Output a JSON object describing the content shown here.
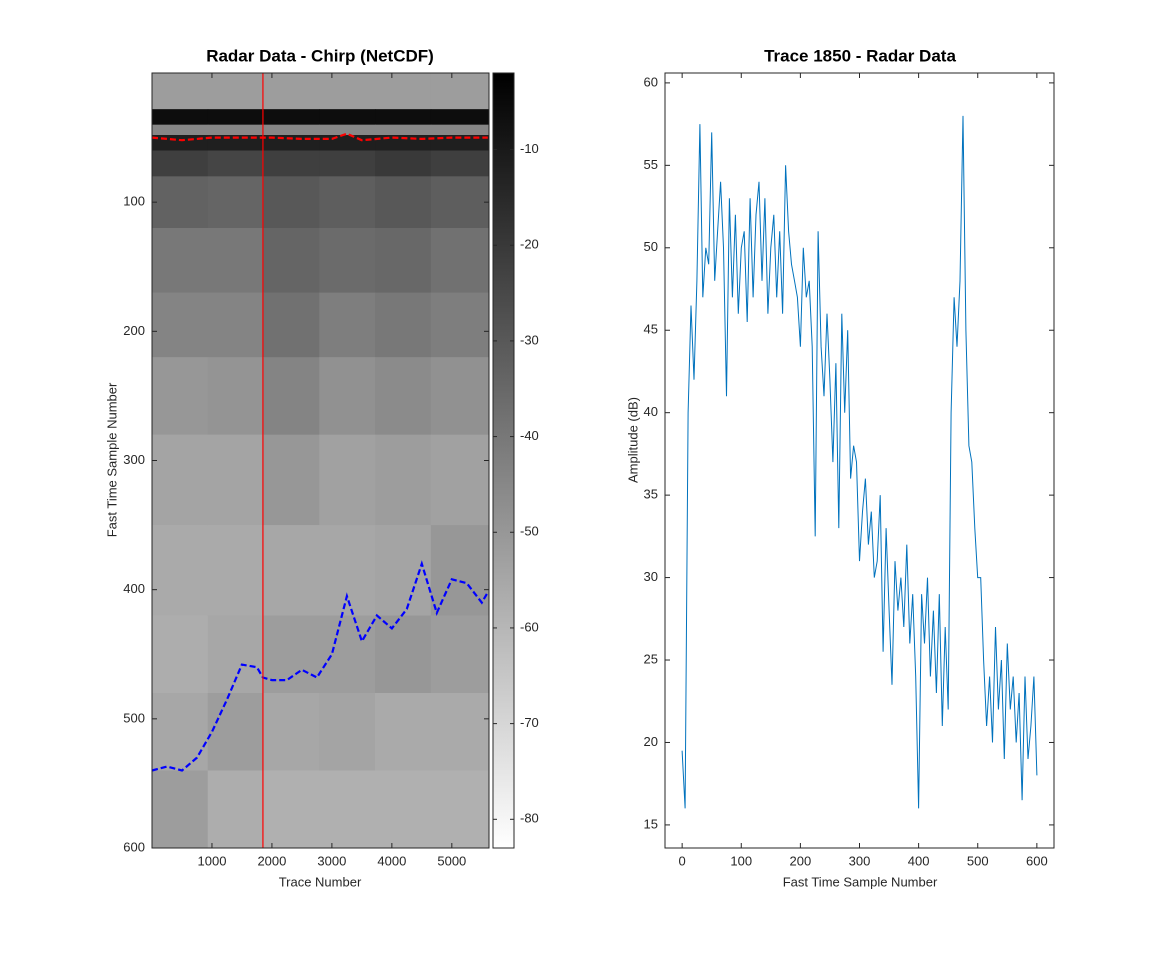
{
  "chart_data": [
    {
      "type": "heatmap",
      "title": "Radar Data - Chirp (NetCDF)",
      "xlabel": "Trace Number",
      "ylabel": "Fast Time Sample Number",
      "xlim": [
        0,
        5620
      ],
      "ylim": [
        0,
        600
      ],
      "y_reversed": true,
      "xticks": [
        1000,
        2000,
        3000,
        4000,
        5000
      ],
      "yticks": [
        100,
        200,
        300,
        400,
        500,
        600
      ],
      "colormap": "gray-reversed",
      "clim": [
        -83,
        -2
      ],
      "cticks": [
        -10,
        -20,
        -30,
        -40,
        -50,
        -60,
        -70,
        -80
      ],
      "xbins": [
        0,
        930,
        1860,
        2790,
        3720,
        4650,
        5620
      ],
      "ybins": [
        0,
        28,
        40,
        48,
        60,
        80,
        120,
        170,
        220,
        280,
        350,
        420,
        480,
        540,
        600
      ],
      "z": [
        [
          -52,
          -52,
          -52,
          -52,
          -52,
          -52
        ],
        [
          -6,
          -6,
          -6,
          -6,
          -6,
          -6
        ],
        [
          -45,
          -45,
          -45,
          -45,
          -45,
          -45
        ],
        [
          -12,
          -12,
          -12,
          -12,
          -12,
          -12
        ],
        [
          -22,
          -24,
          -22,
          -22,
          -20,
          -22
        ],
        [
          -33,
          -34,
          -30,
          -32,
          -30,
          -32
        ],
        [
          -40,
          -40,
          -34,
          -36,
          -35,
          -38
        ],
        [
          -44,
          -44,
          -38,
          -42,
          -40,
          -42
        ],
        [
          -50,
          -49,
          -44,
          -48,
          -46,
          -48
        ],
        [
          -54,
          -54,
          -50,
          -53,
          -52,
          -53
        ],
        [
          -56,
          -56,
          -55,
          -55,
          -54,
          -50
        ],
        [
          -57,
          -55,
          -52,
          -52,
          -50,
          -52
        ],
        [
          -55,
          -52,
          -55,
          -54,
          -56,
          -56
        ],
        [
          -52,
          -57,
          -58,
          -58,
          -58,
          -58
        ]
      ],
      "series": [
        {
          "color": "#ff0000",
          "style": "dashed",
          "x": [
            0,
            500,
            1000,
            1500,
            2000,
            2500,
            3000,
            3250,
            3500,
            4000,
            4500,
            5000,
            5600
          ],
          "values": [
            50,
            52,
            50,
            50,
            50,
            51,
            51,
            47,
            52,
            50,
            51,
            50,
            50
          ]
        },
        {
          "color": "#0000ff",
          "style": "dashed",
          "x": [
            0,
            250,
            500,
            750,
            1000,
            1250,
            1500,
            1750,
            1850,
            2000,
            2250,
            2500,
            2750,
            3000,
            3250,
            3500,
            3750,
            4000,
            4250,
            4500,
            4750,
            5000,
            5250,
            5500,
            5600
          ],
          "values": [
            540,
            537,
            540,
            530,
            510,
            485,
            458,
            460,
            468,
            470,
            470,
            462,
            468,
            450,
            405,
            440,
            420,
            430,
            415,
            380,
            418,
            392,
            395,
            410,
            402
          ]
        }
      ],
      "vline": 1850,
      "vline_color": "#ff0000"
    },
    {
      "type": "line",
      "title": "Trace 1850 - Radar Data",
      "xlabel": "Fast Time Sample Number",
      "ylabel": "Amplitude (dB)",
      "xlim": [
        -29,
        629
      ],
      "ylim": [
        13.6,
        60.6
      ],
      "xticks": [
        0,
        100,
        200,
        300,
        400,
        500,
        600
      ],
      "yticks": [
        15,
        20,
        25,
        30,
        35,
        40,
        45,
        50,
        55,
        60
      ],
      "color": "#0072bd",
      "x": [
        0,
        5,
        10,
        15,
        20,
        25,
        30,
        35,
        40,
        45,
        50,
        55,
        60,
        65,
        70,
        75,
        80,
        85,
        90,
        95,
        100,
        105,
        110,
        115,
        120,
        125,
        130,
        135,
        140,
        145,
        150,
        155,
        160,
        165,
        170,
        175,
        180,
        185,
        190,
        195,
        200,
        205,
        210,
        215,
        220,
        225,
        230,
        235,
        240,
        245,
        250,
        255,
        260,
        265,
        270,
        275,
        280,
        285,
        290,
        295,
        300,
        305,
        310,
        315,
        320,
        325,
        330,
        335,
        340,
        345,
        350,
        355,
        360,
        365,
        370,
        375,
        380,
        385,
        390,
        395,
        400,
        405,
        410,
        415,
        420,
        425,
        430,
        435,
        440,
        445,
        450,
        455,
        460,
        465,
        470,
        475,
        480,
        485,
        490,
        495,
        500,
        505,
        510,
        515,
        520,
        525,
        530,
        535,
        540,
        545,
        550,
        555,
        560,
        565,
        570,
        575,
        580,
        585,
        590,
        595,
        600
      ],
      "values": [
        19.5,
        16,
        40,
        46.5,
        42,
        48,
        57.5,
        47,
        50,
        49,
        57,
        48,
        51,
        54,
        50,
        41,
        53,
        47,
        52,
        46,
        50,
        51,
        45.5,
        53,
        47,
        52,
        54,
        48,
        53,
        46,
        50,
        52,
        47,
        51,
        46,
        55,
        51,
        49,
        48,
        47,
        44,
        50,
        47,
        48,
        44,
        32.5,
        51,
        44,
        41,
        46,
        42,
        37,
        43,
        33,
        46,
        40,
        45,
        36,
        38,
        37,
        31,
        34,
        36,
        32,
        34,
        30,
        31,
        35,
        25.5,
        33,
        28,
        23.5,
        31,
        28,
        30,
        27,
        32,
        26,
        29,
        24,
        16,
        29,
        26,
        30,
        24,
        28,
        23,
        29,
        21,
        27,
        22,
        40,
        47,
        44,
        48,
        58,
        45,
        38,
        37,
        33,
        30,
        30,
        25,
        21,
        24,
        20,
        27,
        22,
        25,
        19,
        26,
        22,
        24,
        20,
        23,
        16.5,
        24,
        19,
        21,
        24,
        18
      ]
    }
  ]
}
